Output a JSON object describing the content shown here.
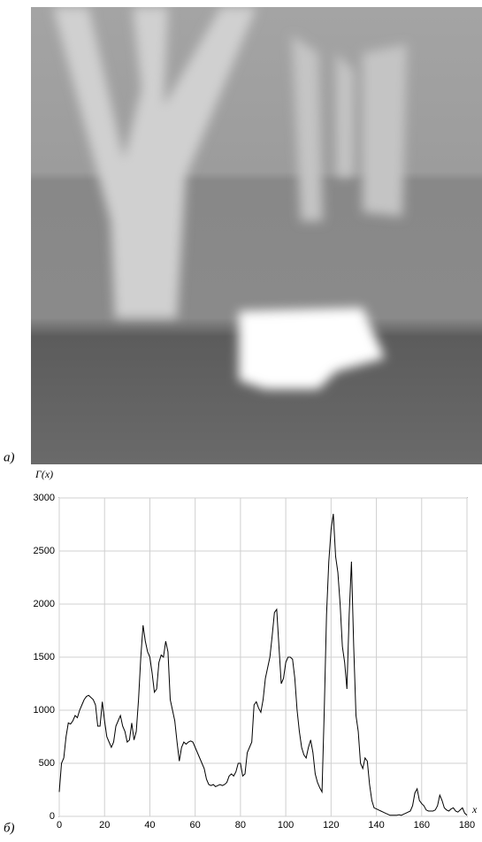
{
  "image": {
    "label": "а)"
  },
  "chart_data": {
    "type": "line",
    "panel_label": "б)",
    "ylabel": "Γ(x)",
    "xlabel": "x",
    "color": "#000000",
    "grid": true,
    "xlim": [
      0,
      180
    ],
    "ylim": [
      0,
      3000
    ],
    "xticks": [
      0,
      20,
      40,
      60,
      80,
      100,
      120,
      140,
      160,
      180
    ],
    "yticks": [
      0,
      500,
      1000,
      1500,
      2000,
      2500,
      3000
    ],
    "x": [
      0,
      1,
      2,
      3,
      4,
      5,
      6,
      7,
      8,
      9,
      10,
      11,
      12,
      13,
      14,
      15,
      16,
      17,
      18,
      19,
      20,
      21,
      22,
      23,
      24,
      25,
      26,
      27,
      28,
      29,
      30,
      31,
      32,
      33,
      34,
      35,
      36,
      37,
      38,
      39,
      40,
      41,
      42,
      43,
      44,
      45,
      46,
      47,
      48,
      49,
      50,
      51,
      52,
      53,
      54,
      55,
      56,
      57,
      58,
      59,
      60,
      61,
      62,
      63,
      64,
      65,
      66,
      67,
      68,
      69,
      70,
      71,
      72,
      73,
      74,
      75,
      76,
      77,
      78,
      79,
      80,
      81,
      82,
      83,
      84,
      85,
      86,
      87,
      88,
      89,
      90,
      91,
      92,
      93,
      94,
      95,
      96,
      97,
      98,
      99,
      100,
      101,
      102,
      103,
      104,
      105,
      106,
      107,
      108,
      109,
      110,
      111,
      112,
      113,
      114,
      115,
      116,
      117,
      118,
      119,
      120,
      121,
      122,
      123,
      124,
      125,
      126,
      127,
      128,
      129,
      130,
      131,
      132,
      133,
      134,
      135,
      136,
      137,
      138,
      139,
      140,
      141,
      142,
      143,
      144,
      145,
      146,
      147,
      148,
      149,
      150,
      151,
      152,
      153,
      154,
      155,
      156,
      157,
      158,
      159,
      160,
      161,
      162,
      163,
      164,
      165,
      166,
      167,
      168,
      169,
      170,
      171,
      172,
      173,
      174,
      175,
      176,
      177,
      178,
      179,
      180
    ],
    "values": [
      230,
      500,
      550,
      750,
      880,
      870,
      900,
      950,
      930,
      1000,
      1050,
      1100,
      1130,
      1140,
      1120,
      1100,
      1050,
      850,
      850,
      1080,
      900,
      750,
      700,
      650,
      700,
      850,
      900,
      950,
      850,
      800,
      700,
      720,
      880,
      720,
      800,
      1100,
      1500,
      1800,
      1650,
      1550,
      1500,
      1350,
      1170,
      1200,
      1450,
      1520,
      1500,
      1650,
      1550,
      1100,
      1000,
      900,
      700,
      520,
      650,
      700,
      680,
      700,
      710,
      700,
      650,
      600,
      550,
      500,
      450,
      350,
      300,
      290,
      300,
      280,
      290,
      300,
      290,
      300,
      320,
      380,
      400,
      380,
      420,
      500,
      500,
      380,
      400,
      600,
      650,
      700,
      1050,
      1080,
      1020,
      980,
      1100,
      1300,
      1400,
      1500,
      1700,
      1920,
      1950,
      1600,
      1250,
      1300,
      1450,
      1500,
      1500,
      1480,
      1300,
      1000,
      800,
      650,
      580,
      550,
      650,
      720,
      600,
      400,
      320,
      270,
      230,
      1000,
      1900,
      2400,
      2700,
      2850,
      2450,
      2300,
      2000,
      1600,
      1450,
      1200,
      1900,
      2400,
      1600,
      950,
      800,
      500,
      450,
      550,
      520,
      300,
      150,
      80,
      70,
      60,
      50,
      40,
      30,
      20,
      10,
      10,
      10,
      10,
      15,
      10,
      20,
      30,
      40,
      50,
      100,
      220,
      260,
      150,
      120,
      100,
      60,
      50,
      50,
      50,
      60,
      100,
      200,
      150,
      80,
      60,
      50,
      70,
      80,
      50,
      40,
      60,
      80,
      30,
      10
    ]
  }
}
